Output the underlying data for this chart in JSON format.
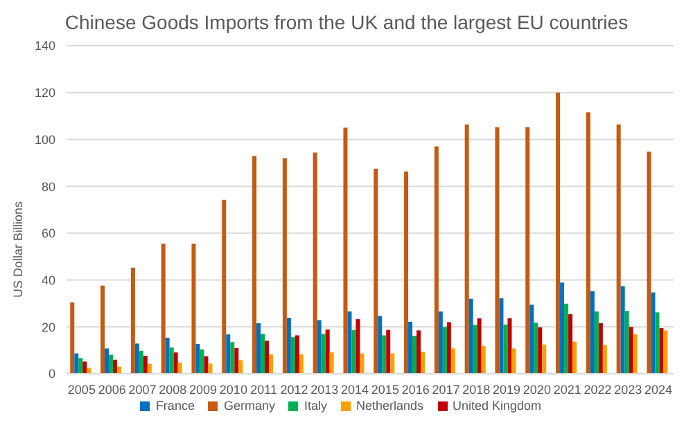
{
  "chart_data": {
    "type": "bar",
    "title": "Chinese Goods Imports from the UK and the largest EU countries",
    "ylabel": "US Dollar Billions",
    "categories": [
      "2005",
      "2006",
      "2007",
      "2008",
      "2009",
      "2010",
      "2011",
      "2012",
      "2013",
      "2014",
      "2015",
      "2016",
      "2017",
      "2018",
      "2019",
      "2020",
      "2021",
      "2022",
      "2023",
      "2024"
    ],
    "series": [
      {
        "name": "Germany",
        "color": "#c55a11",
        "values": [
          30.5,
          37.6,
          45.3,
          55.5,
          55.5,
          74.2,
          93,
          92,
          94.4,
          105,
          87.5,
          86.3,
          97,
          106.4,
          105.2,
          105.2,
          120,
          111.6,
          106.4,
          94.8
        ]
      },
      {
        "name": "France",
        "color": "#0070c0",
        "values": [
          8.7,
          10.8,
          12.9,
          15.4,
          12.7,
          16.8,
          21.6,
          23.9,
          22.9,
          26.6,
          24.7,
          22.2,
          26.6,
          32,
          32.2,
          29.5,
          38.9,
          35.3,
          37.4,
          34.7
        ]
      },
      {
        "name": "Italy",
        "color": "#00b050",
        "values": [
          6.7,
          8.1,
          9.8,
          11.2,
          10.4,
          13.5,
          17,
          15.6,
          17,
          18.7,
          16.4,
          16.2,
          20,
          20.8,
          21,
          21.8,
          29.9,
          26.6,
          26.8,
          26.2
        ]
      },
      {
        "name": "United Kingdom",
        "color": "#c00000",
        "values": [
          5.2,
          6,
          7.7,
          9.1,
          7.5,
          11,
          14.1,
          16.4,
          18.9,
          23.3,
          18.7,
          18.5,
          22,
          23.7,
          23.7,
          19.8,
          25.4,
          21.6,
          20,
          19.5
        ]
      },
      {
        "name": "Netherlands",
        "color": "#ffa000",
        "values": [
          2.5,
          3.1,
          4.2,
          4.8,
          4.4,
          5.8,
          8.3,
          8.3,
          9.1,
          8.7,
          8.7,
          9.4,
          10.8,
          11.9,
          10.8,
          12.5,
          13.7,
          12.3,
          16.8,
          18.5
        ]
      }
    ],
    "ylim": [
      0,
      140
    ],
    "yticks": [
      0,
      20,
      40,
      60,
      80,
      100,
      120,
      140
    ],
    "grid": "y",
    "legend": "bottom"
  }
}
